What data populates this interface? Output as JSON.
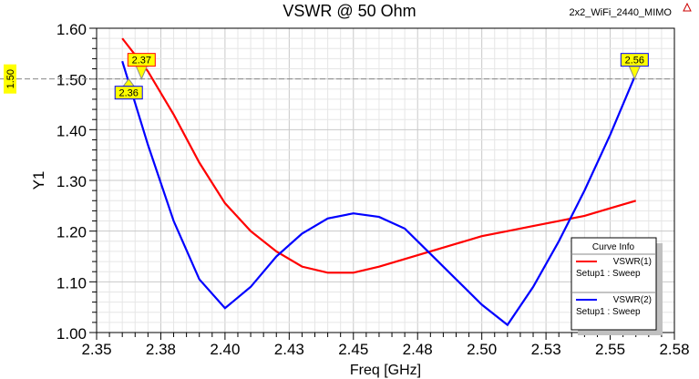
{
  "header": {
    "title": "VSWR @ 50 Ohm",
    "project": "2x2_WiFi_2440_MIMO"
  },
  "chart_data": {
    "type": "line",
    "title": "VSWR @ 50 Ohm",
    "xlabel": "Freq [GHz]",
    "ylabel": "Y1",
    "xlim": [
      2.35,
      2.575
    ],
    "ylim": [
      1.0,
      1.6
    ],
    "xticks": [
      "2.35",
      "2.38",
      "2.40",
      "2.43",
      "2.45",
      "2.48",
      "2.50",
      "2.53",
      "2.55",
      "2.58"
    ],
    "yticks": [
      "1.00",
      "1.10",
      "1.20",
      "1.30",
      "1.40",
      "1.50",
      "1.60"
    ],
    "grid": true,
    "reference_line": {
      "y": 1.5,
      "label": "1.50"
    },
    "x": [
      2.36,
      2.37,
      2.38,
      2.39,
      2.4,
      2.41,
      2.42,
      2.43,
      2.44,
      2.45,
      2.46,
      2.47,
      2.48,
      2.49,
      2.5,
      2.51,
      2.52,
      2.53,
      2.54,
      2.55,
      2.56
    ],
    "series": [
      {
        "name": "VSWR(1)",
        "sub": "Setup1 : Sweep",
        "color": "#ff0000",
        "values": [
          1.58,
          1.515,
          1.43,
          1.335,
          1.255,
          1.2,
          1.16,
          1.13,
          1.118,
          1.118,
          1.13,
          1.145,
          1.16,
          1.175,
          1.19,
          1.2,
          1.21,
          1.22,
          1.23,
          1.245,
          1.26
        ]
      },
      {
        "name": "VSWR(2)",
        "sub": "Setup1 : Sweep",
        "color": "#0000ff",
        "values": [
          1.535,
          1.37,
          1.22,
          1.105,
          1.048,
          1.09,
          1.15,
          1.195,
          1.225,
          1.235,
          1.228,
          1.205,
          1.155,
          1.105,
          1.055,
          1.015,
          1.09,
          1.18,
          1.28,
          1.39,
          1.51
        ]
      }
    ],
    "markers": [
      {
        "label": "2.37",
        "x": 2.3675,
        "y": 1.5,
        "border": "#ff0000",
        "dir": "down"
      },
      {
        "label": "2.36",
        "x": 2.3625,
        "y": 1.5,
        "border": "#0000ff",
        "dir": "up"
      },
      {
        "label": "2.56",
        "x": 2.5595,
        "y": 1.5,
        "border": "#0000ff",
        "dir": "down"
      }
    ],
    "legend": {
      "title": "Curve Info",
      "placement": "bottom-right"
    }
  }
}
